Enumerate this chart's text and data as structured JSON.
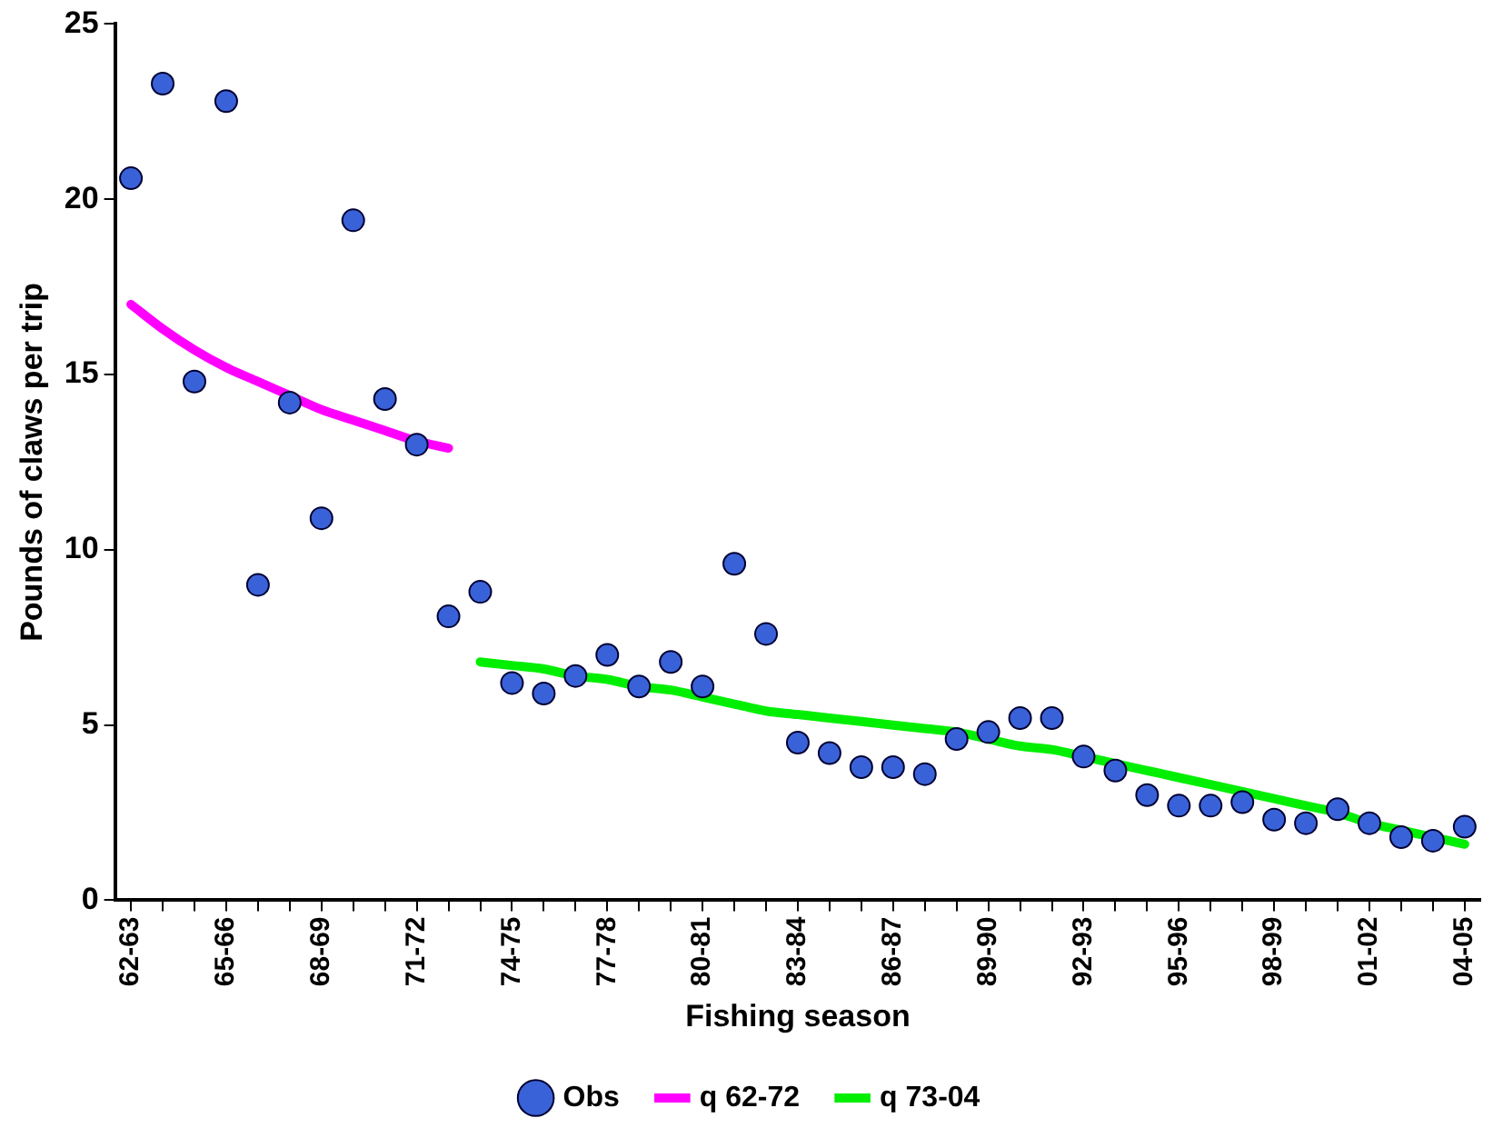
{
  "chart_data": {
    "type": "line",
    "xlabel": "Fishing season",
    "ylabel": "Pounds of claws per trip",
    "categories": [
      "62-63",
      null,
      null,
      "65-66",
      null,
      null,
      "68-69",
      null,
      null,
      "71-72",
      null,
      null,
      "74-75",
      null,
      null,
      "77-78",
      null,
      null,
      "80-81",
      null,
      null,
      "83-84",
      null,
      null,
      "86-87",
      null,
      null,
      "89-90",
      null,
      null,
      "92-93",
      null,
      null,
      "95-96",
      null,
      null,
      "98-99",
      null,
      null,
      "01-02",
      null,
      null,
      "04-05"
    ],
    "ylim": [
      0,
      25
    ],
    "yticks": [
      0,
      5,
      10,
      15,
      20,
      25
    ],
    "grid": false,
    "legend": "bottom",
    "series": [
      {
        "name": "Obs",
        "type": "scatter",
        "marker": "circle",
        "color": "#3a62d8",
        "values": [
          20.6,
          23.3,
          14.8,
          22.8,
          9.0,
          14.2,
          10.9,
          19.4,
          14.3,
          13.0,
          8.1,
          8.8,
          6.2,
          5.9,
          6.4,
          7.0,
          6.1,
          6.8,
          6.1,
          9.6,
          7.6,
          4.5,
          4.2,
          3.8,
          3.8,
          3.6,
          4.6,
          4.8,
          5.2,
          5.2,
          4.1,
          3.7,
          3.0,
          2.7,
          2.7,
          2.8,
          2.3,
          2.2,
          2.6,
          2.2,
          1.8,
          1.7,
          2.1
        ]
      },
      {
        "name": "q 62-72",
        "type": "line",
        "line_style": "solid",
        "color": "#ff00ff",
        "values": [
          17.0,
          16.3,
          15.7,
          15.2,
          14.8,
          14.4,
          14.0,
          13.7,
          13.4,
          13.1,
          12.9,
          null,
          null,
          null,
          null,
          null,
          null,
          null,
          null,
          null,
          null,
          null,
          null,
          null,
          null,
          null,
          null,
          null,
          null,
          null,
          null,
          null,
          null,
          null,
          null,
          null,
          null,
          null,
          null,
          null,
          null,
          null,
          null
        ]
      },
      {
        "name": "q 73-04",
        "type": "line",
        "line_style": "solid",
        "color": "#00ee00",
        "values": [
          null,
          null,
          null,
          null,
          null,
          null,
          null,
          null,
          null,
          null,
          null,
          6.8,
          6.7,
          6.6,
          6.4,
          6.3,
          6.1,
          6.0,
          5.8,
          5.6,
          5.4,
          5.3,
          5.2,
          5.1,
          5.0,
          4.9,
          4.8,
          4.6,
          4.4,
          4.3,
          4.1,
          3.9,
          3.7,
          3.5,
          3.3,
          3.1,
          2.9,
          2.7,
          2.5,
          2.2,
          2.0,
          1.8,
          1.6
        ]
      }
    ]
  }
}
